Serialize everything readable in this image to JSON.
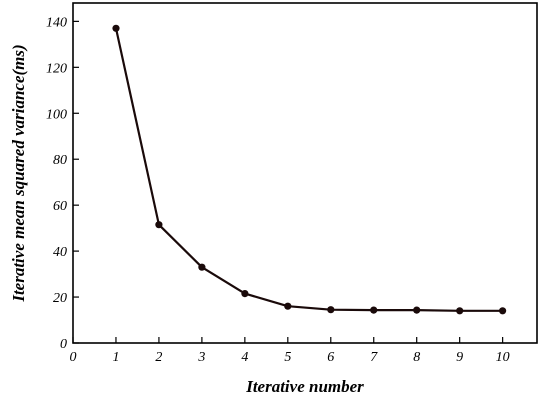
{
  "chart_data": {
    "type": "line",
    "title": "",
    "xlabel": "Iterative number",
    "ylabel": "Iterative mean squared variance(ms)",
    "xlim": [
      0,
      10.8
    ],
    "ylim": [
      0,
      148
    ],
    "x_ticks": [
      0,
      1,
      2,
      3,
      4,
      5,
      6,
      7,
      8,
      9,
      10
    ],
    "y_ticks": [
      0,
      20,
      40,
      60,
      80,
      100,
      120,
      140
    ],
    "grid": false,
    "legend": "none",
    "x": [
      1,
      2,
      3,
      4,
      5,
      6,
      7,
      8,
      9,
      10
    ],
    "series": [
      {
        "values": [
          137,
          51.5,
          33,
          21.5,
          16,
          14.5,
          14.3,
          14.3,
          14,
          14
        ],
        "color": "#1a0a0a"
      }
    ]
  }
}
